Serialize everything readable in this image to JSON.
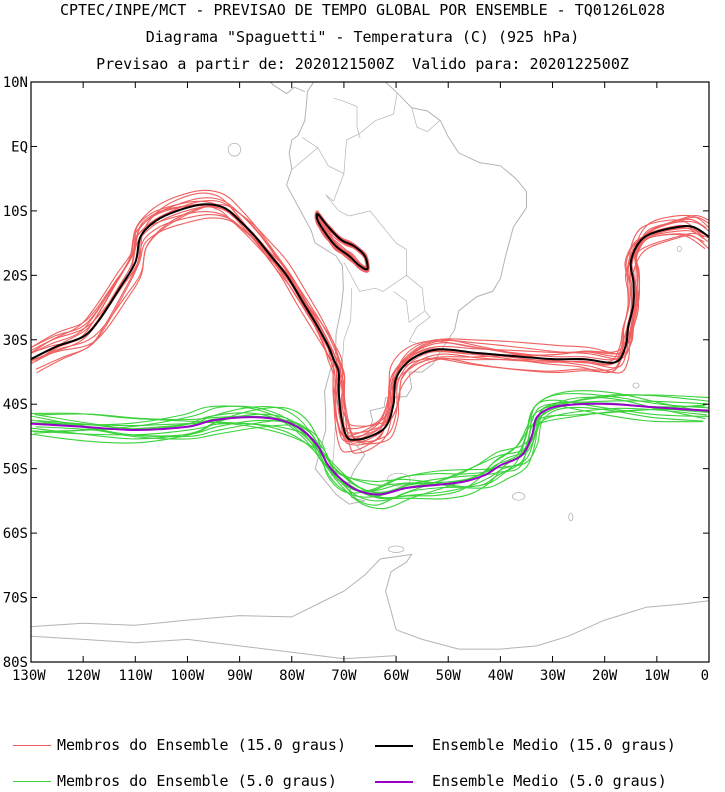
{
  "header": {
    "line1": "CPTEC/INPE/MCT - PREVISAO DE TEMPO GLOBAL POR ENSEMBLE - TQ0126L028",
    "line2": "Diagrama \"Spaguetti\" - Temperatura (C) (925 hPa)",
    "line3": "Previsao a partir de: 2020121500Z  Valido para: 2020122500Z"
  },
  "map": {
    "lon_range": [
      -130,
      0
    ],
    "lat_range": [
      -80,
      10
    ],
    "lat_ticks": [
      "10N",
      "EQ",
      "10S",
      "20S",
      "30S",
      "40S",
      "50S",
      "60S",
      "70S",
      "80S"
    ],
    "lon_ticks": [
      "130W",
      "120W",
      "110W",
      "100W",
      "90W",
      "80W",
      "70W",
      "60W",
      "50W",
      "40W",
      "30W",
      "20W",
      "10W",
      "0"
    ],
    "land_color": "#b4b4b4"
  },
  "legend": [
    {
      "label": "Membros do Ensemble (15.0 graus)",
      "color": "#f06060"
    },
    {
      "label": "Ensemble Medio (15.0 graus)",
      "color": "#000000"
    },
    {
      "label": "Membros do Ensemble (5.0 graus)",
      "color": "#3cd23c"
    },
    {
      "label": "Ensemble Medio (5.0 graus)",
      "color": "#9900cc"
    }
  ],
  "chart_data": {
    "type": "line",
    "x_units": "degrees longitude (negative = W)",
    "y_units": "degrees latitude (negative = S)",
    "member_count_estimate": 14,
    "series": [
      {
        "name": "Ensemble Medio (15.0 graus)",
        "points": [
          [
            -130,
            -33
          ],
          [
            -125,
            -31
          ],
          [
            -120,
            -29.5
          ],
          [
            -117,
            -27
          ],
          [
            -113,
            -22
          ],
          [
            -110,
            -18
          ],
          [
            -109,
            -14
          ],
          [
            -106,
            -11.5
          ],
          [
            -102,
            -10
          ],
          [
            -97,
            -9
          ],
          [
            -93,
            -9.5
          ],
          [
            -90,
            -11.5
          ],
          [
            -87,
            -14
          ],
          [
            -84,
            -17
          ],
          [
            -81,
            -20
          ],
          [
            -78,
            -24
          ],
          [
            -75,
            -28
          ],
          [
            -73,
            -31
          ],
          [
            -72,
            -33
          ],
          [
            -71,
            -35
          ],
          [
            -71,
            -38
          ],
          [
            -70.5,
            -42
          ],
          [
            -69.5,
            -45
          ],
          [
            -68,
            -45.5
          ],
          [
            -65,
            -45
          ],
          [
            -62,
            -43.5
          ],
          [
            -60.5,
            -40
          ],
          [
            -60,
            -36
          ],
          [
            -57,
            -33
          ],
          [
            -52,
            -31.5
          ],
          [
            -45,
            -32
          ],
          [
            -38,
            -32.5
          ],
          [
            -30,
            -33
          ],
          [
            -24,
            -33
          ],
          [
            -18,
            -33.5
          ],
          [
            -16,
            -31
          ],
          [
            -15.5,
            -28
          ],
          [
            -14.5,
            -24.5
          ],
          [
            -14.5,
            -21
          ],
          [
            -15,
            -18
          ],
          [
            -13.5,
            -15
          ],
          [
            -11,
            -13.5
          ],
          [
            -6,
            -12.5
          ],
          [
            -3,
            -12.5
          ],
          [
            0,
            -14
          ]
        ]
      },
      {
        "name": "Ensemble Medio (15.0 graus)",
        "points": [
          [
            -75,
            -10.5
          ],
          [
            -73,
            -12.5
          ],
          [
            -70.5,
            -14.5
          ],
          [
            -68,
            -15.5
          ],
          [
            -66,
            -17
          ],
          [
            -65.5,
            -19
          ],
          [
            -67,
            -18.5
          ],
          [
            -69,
            -17
          ],
          [
            -71.5,
            -15.5
          ],
          [
            -73.5,
            -13.5
          ],
          [
            -75,
            -11.5
          ]
        ]
      },
      {
        "name": "Ensemble Medio (5.0 graus)",
        "points": [
          [
            -130,
            -43
          ],
          [
            -120,
            -43.5
          ],
          [
            -110,
            -44
          ],
          [
            -100,
            -43.5
          ],
          [
            -95,
            -42.5
          ],
          [
            -88,
            -42
          ],
          [
            -82,
            -42.5
          ],
          [
            -78,
            -44
          ],
          [
            -75,
            -46.5
          ],
          [
            -73,
            -49.5
          ],
          [
            -70,
            -52
          ],
          [
            -67,
            -53.5
          ],
          [
            -63,
            -54
          ],
          [
            -58,
            -53
          ],
          [
            -52,
            -52.5
          ],
          [
            -47,
            -52
          ],
          [
            -43,
            -51
          ],
          [
            -40,
            -49.5
          ],
          [
            -36,
            -48
          ],
          [
            -34,
            -45
          ],
          [
            -33,
            -42
          ],
          [
            -30,
            -40.5
          ],
          [
            -25,
            -40
          ],
          [
            -18,
            -40
          ],
          [
            -10,
            -40.5
          ],
          [
            0,
            -41
          ]
        ]
      }
    ],
    "members_15C": [
      {
        "lat_offset_pattern": [
          0.0,
          0.0
        ],
        "spread_deg": 3
      }
    ],
    "members_5C": [
      {
        "lat_offset_pattern": [
          0.0,
          0.0
        ],
        "spread_deg": 3
      }
    ]
  }
}
